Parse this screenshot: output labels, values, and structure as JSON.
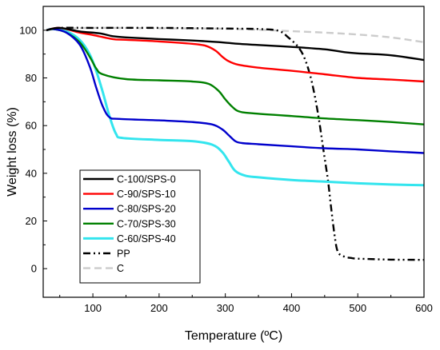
{
  "chart_data": {
    "type": "line",
    "xlabel": "Temperature (ºC)",
    "ylabel": "Weight loss (%)",
    "xlim": [
      25,
      600
    ],
    "ylim": [
      -12,
      110
    ],
    "xticks": [
      100,
      200,
      300,
      400,
      500,
      600
    ],
    "yticks": [
      0,
      20,
      40,
      60,
      80,
      100
    ],
    "grid": false,
    "legend_position": "bottom-left",
    "series": [
      {
        "name": "C-100/SPS-0",
        "color": "#000000",
        "dash": "solid",
        "x": [
          30,
          50,
          80,
          110,
          130,
          150,
          200,
          250,
          280,
          300,
          320,
          350,
          400,
          450,
          480,
          500,
          550,
          600
        ],
        "y": [
          100,
          101,
          99.5,
          98.7,
          97.5,
          97,
          96.3,
          95.7,
          95.2,
          94.8,
          94.3,
          93.8,
          93,
          92,
          90.8,
          90.3,
          89.5,
          87.5
        ]
      },
      {
        "name": "C-90/SPS-10",
        "color": "#ff0000",
        "dash": "solid",
        "x": [
          30,
          50,
          80,
          100,
          130,
          150,
          200,
          250,
          270,
          285,
          295,
          305,
          320,
          350,
          400,
          450,
          500,
          550,
          600
        ],
        "y": [
          100,
          101,
          99,
          98,
          96.3,
          96,
          95.3,
          94.3,
          93.5,
          91.5,
          89,
          87,
          85.5,
          84.3,
          83,
          81.5,
          80,
          79.3,
          78.5
        ]
      },
      {
        "name": "C-80/SPS-20",
        "color": "#0000cc",
        "dash": "solid",
        "x": [
          30,
          40,
          60,
          80,
          95,
          105,
          115,
          125,
          140,
          200,
          250,
          280,
          295,
          305,
          315,
          325,
          350,
          400,
          450,
          500,
          550,
          600
        ],
        "y": [
          100,
          100.5,
          99,
          94,
          85,
          76,
          68,
          63.5,
          62.8,
          62.2,
          61.5,
          60.5,
          58.5,
          56,
          53.5,
          52.7,
          52.2,
          51.3,
          50.5,
          50,
          49.2,
          48.5
        ]
      },
      {
        "name": "C-70/SPS-30",
        "color": "#008000",
        "dash": "solid",
        "x": [
          30,
          40,
          60,
          80,
          95,
          105,
          115,
          150,
          200,
          250,
          275,
          290,
          300,
          310,
          320,
          340,
          400,
          450,
          500,
          550,
          600
        ],
        "y": [
          100,
          100.5,
          99,
          95,
          89,
          84,
          81.5,
          79.5,
          79,
          78.5,
          77.5,
          74.5,
          71,
          68,
          66,
          65.2,
          64,
          63,
          62.3,
          61.5,
          60.5
        ]
      },
      {
        "name": "C-60/SPS-40",
        "color": "#33e5ee",
        "dash": "solid",
        "x": [
          30,
          40,
          60,
          80,
          95,
          105,
          115,
          125,
          135,
          145,
          200,
          250,
          280,
          295,
          305,
          315,
          330,
          350,
          400,
          450,
          500,
          550,
          600
        ],
        "y": [
          100,
          100.5,
          99.5,
          96,
          90,
          83,
          74,
          64,
          56.5,
          54.8,
          54,
          53.5,
          52,
          49,
          45,
          41,
          39,
          38.3,
          37.2,
          36.5,
          35.8,
          35.3,
          35
        ]
      },
      {
        "name": "PP",
        "color": "#000000",
        "dash": "dashdotdot",
        "x": [
          30,
          50,
          100,
          200,
          300,
          350,
          380,
          395,
          410,
          420,
          430,
          440,
          448,
          455,
          460,
          465,
          470,
          480,
          490,
          500,
          550,
          600
        ],
        "y": [
          100,
          101,
          101,
          101,
          100.7,
          100.5,
          99.8,
          97,
          93,
          88,
          79,
          65,
          50,
          37,
          25,
          14,
          7,
          5,
          4.5,
          4.2,
          3.8,
          3.7
        ]
      },
      {
        "name": "C",
        "color": "#cccccc",
        "dash": "dashed",
        "x": [
          30,
          50,
          100,
          200,
          300,
          350,
          400,
          450,
          500,
          550,
          600
        ],
        "y": [
          100,
          100.5,
          101,
          100.8,
          100.6,
          100.2,
          99.6,
          99,
          98.2,
          97,
          95
        ]
      }
    ]
  }
}
